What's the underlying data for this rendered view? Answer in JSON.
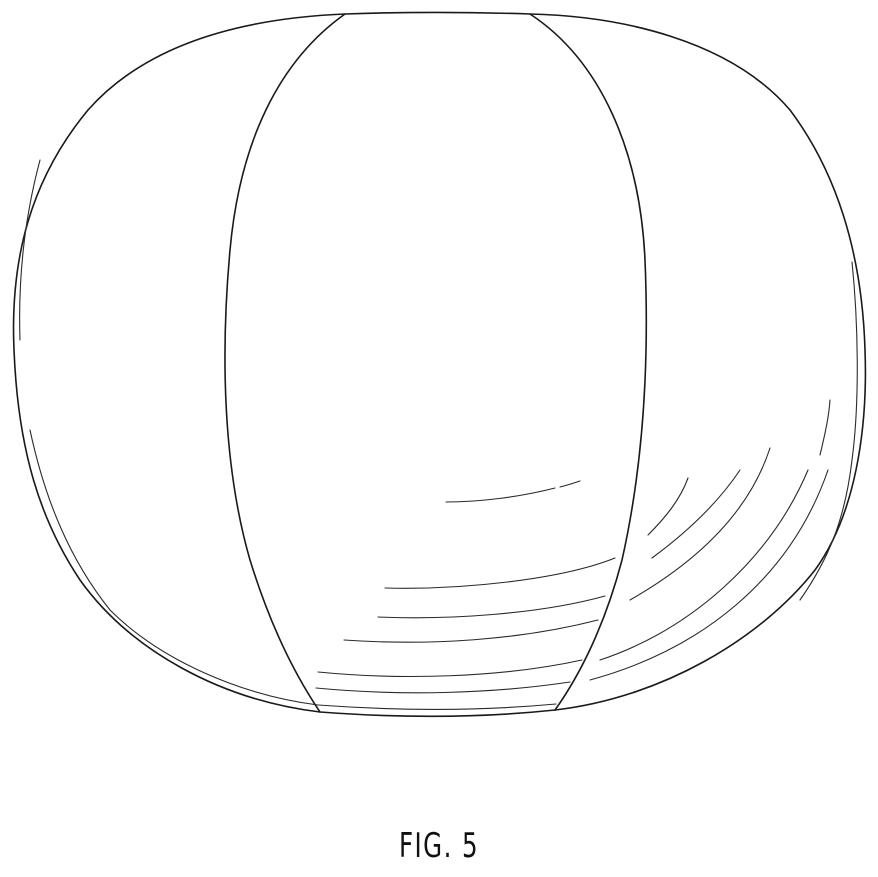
{
  "figure": {
    "label": "FIG. 5"
  }
}
